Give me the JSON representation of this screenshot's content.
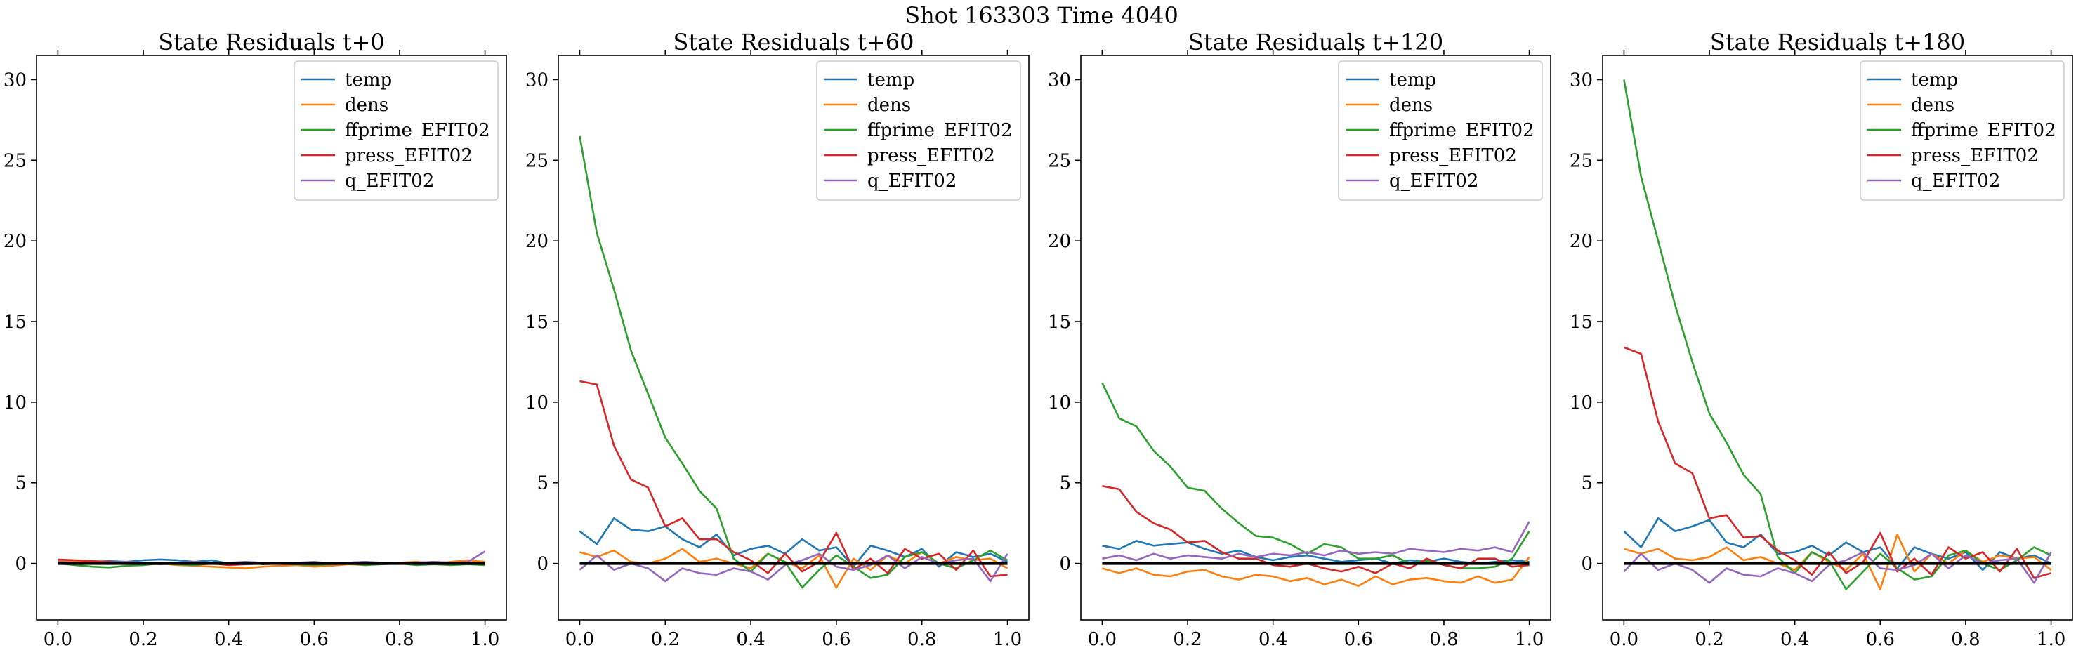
{
  "figure": {
    "suptitle": "Shot 163303   Time 4040"
  },
  "chart_data": [
    {
      "type": "line",
      "title": "State Residuals t+0",
      "xlim": [
        -0.05,
        1.05
      ],
      "ylim": [
        -3.5,
        31.5
      ],
      "xticks": [
        0.0,
        0.2,
        0.4,
        0.6,
        0.8,
        1.0
      ],
      "xtick_labels": [
        "0.0",
        "0.2",
        "0.4",
        "0.6",
        "0.8",
        "1.0"
      ],
      "yticks": [
        0,
        5,
        10,
        15,
        20,
        25,
        30
      ],
      "ytick_labels": [
        "0",
        "5",
        "10",
        "15",
        "20",
        "25",
        "30"
      ],
      "legend_position": "top-right",
      "x": [
        0.0,
        0.04,
        0.08,
        0.12,
        0.16,
        0.2,
        0.24,
        0.28,
        0.32,
        0.36,
        0.4,
        0.44,
        0.48,
        0.52,
        0.56,
        0.6,
        0.64,
        0.68,
        0.72,
        0.76,
        0.8,
        0.84,
        0.88,
        0.92,
        0.96,
        1.0
      ],
      "series": [
        {
          "name": "temp",
          "color": "#1f77b4",
          "values": [
            0.1,
            0.05,
            0.1,
            0.15,
            0.1,
            0.2,
            0.25,
            0.2,
            0.1,
            0.2,
            0.0,
            0.1,
            -0.05,
            0.0,
            0.05,
            -0.1,
            0.0,
            0.05,
            0.1,
            0.0,
            0.05,
            0.1,
            0.0,
            0.05,
            0.0,
            0.05
          ]
        },
        {
          "name": "dens",
          "color": "#ff7f0e",
          "values": [
            0.2,
            0.15,
            0.1,
            0.05,
            0.0,
            -0.05,
            0.0,
            -0.1,
            -0.15,
            -0.2,
            -0.25,
            -0.3,
            -0.2,
            -0.15,
            -0.1,
            -0.2,
            -0.15,
            -0.05,
            -0.1,
            0.0,
            0.05,
            0.1,
            0.0,
            0.1,
            0.2,
            0.1
          ]
        },
        {
          "name": "ffprime_EFIT02",
          "color": "#2ca02c",
          "values": [
            0.0,
            -0.1,
            -0.2,
            -0.25,
            -0.15,
            -0.1,
            0.0,
            -0.05,
            -0.1,
            0.0,
            -0.05,
            0.0,
            0.05,
            0.0,
            -0.05,
            -0.1,
            -0.05,
            0.0,
            -0.1,
            -0.05,
            0.0,
            -0.1,
            -0.05,
            -0.1,
            -0.05,
            -0.1
          ]
        },
        {
          "name": "press_EFIT02",
          "color": "#d62728",
          "values": [
            0.25,
            0.2,
            0.15,
            0.1,
            0.05,
            0.0,
            -0.05,
            0.0,
            0.05,
            0.0,
            -0.1,
            -0.05,
            0.0,
            0.05,
            0.0,
            -0.05,
            0.0,
            0.05,
            0.0,
            0.05,
            0.0,
            0.05,
            0.1,
            0.05,
            0.0,
            0.05
          ]
        },
        {
          "name": "q_EFIT02",
          "color": "#9467bd",
          "values": [
            0.1,
            0.05,
            0.0,
            0.05,
            0.1,
            0.05,
            0.0,
            0.05,
            0.1,
            0.0,
            0.05,
            0.1,
            0.05,
            0.0,
            0.05,
            0.1,
            0.0,
            0.05,
            0.1,
            0.05,
            0.0,
            0.05,
            0.1,
            0.05,
            0.1,
            0.75
          ]
        }
      ]
    },
    {
      "type": "line",
      "title": "State Residuals t+60",
      "xlim": [
        -0.05,
        1.05
      ],
      "ylim": [
        -3.5,
        31.5
      ],
      "xticks": [
        0.0,
        0.2,
        0.4,
        0.6,
        0.8,
        1.0
      ],
      "xtick_labels": [
        "0.0",
        "0.2",
        "0.4",
        "0.6",
        "0.8",
        "1.0"
      ],
      "yticks": [
        0,
        5,
        10,
        15,
        20,
        25,
        30
      ],
      "ytick_labels": [
        "0",
        "5",
        "10",
        "15",
        "20",
        "25",
        "30"
      ],
      "legend_position": "top-right",
      "x": [
        0.0,
        0.04,
        0.08,
        0.12,
        0.16,
        0.2,
        0.24,
        0.28,
        0.32,
        0.36,
        0.4,
        0.44,
        0.48,
        0.52,
        0.56,
        0.6,
        0.64,
        0.68,
        0.72,
        0.76,
        0.8,
        0.84,
        0.88,
        0.92,
        0.96,
        1.0
      ],
      "series": [
        {
          "name": "temp",
          "color": "#1f77b4",
          "values": [
            2.0,
            1.2,
            2.8,
            2.1,
            2.0,
            2.3,
            1.5,
            1.0,
            1.8,
            0.5,
            0.9,
            1.1,
            0.6,
            1.5,
            0.8,
            1.0,
            -0.2,
            1.1,
            0.8,
            0.4,
            0.9,
            -0.2,
            0.7,
            0.4,
            0.6,
            0.1
          ]
        },
        {
          "name": "dens",
          "color": "#ff7f0e",
          "values": [
            0.7,
            0.4,
            0.8,
            0.1,
            0.0,
            0.3,
            0.9,
            0.1,
            0.3,
            0.0,
            -0.3,
            0.6,
            0.1,
            -0.3,
            0.5,
            -1.5,
            0.3,
            -0.4,
            0.5,
            0.0,
            0.7,
            0.0,
            0.4,
            0.2,
            0.3,
            -0.3
          ]
        },
        {
          "name": "ffprime_EFIT02",
          "color": "#2ca02c",
          "values": [
            26.5,
            20.5,
            17.0,
            13.2,
            10.5,
            7.8,
            6.2,
            4.5,
            3.4,
            0.3,
            -0.5,
            0.6,
            0.1,
            -1.5,
            -0.4,
            0.5,
            -0.2,
            -0.9,
            -0.7,
            0.4,
            0.7,
            0.0,
            -0.3,
            0.2,
            0.8,
            0.2
          ]
        },
        {
          "name": "press_EFIT02",
          "color": "#d62728",
          "values": [
            11.3,
            11.1,
            7.3,
            5.2,
            4.7,
            2.3,
            2.8,
            1.5,
            1.5,
            0.7,
            0.2,
            -0.6,
            0.6,
            -0.5,
            0.1,
            1.9,
            -0.4,
            0.3,
            -0.6,
            0.9,
            0.3,
            0.6,
            -0.4,
            0.8,
            -0.8,
            -0.7
          ]
        },
        {
          "name": "q_EFIT02",
          "color": "#9467bd",
          "values": [
            -0.4,
            0.5,
            -0.4,
            0.0,
            -0.3,
            -1.1,
            -0.3,
            -0.6,
            -0.7,
            -0.3,
            -0.5,
            -1.0,
            -0.1,
            0.2,
            0.6,
            -0.2,
            -0.4,
            -0.1,
            0.5,
            -0.3,
            0.4,
            0.0,
            0.2,
            0.3,
            -1.1,
            0.6
          ]
        }
      ]
    },
    {
      "type": "line",
      "title": "State Residuals t+120",
      "xlim": [
        -0.05,
        1.05
      ],
      "ylim": [
        -3.5,
        31.5
      ],
      "xticks": [
        0.0,
        0.2,
        0.4,
        0.6,
        0.8,
        1.0
      ],
      "xtick_labels": [
        "0.0",
        "0.2",
        "0.4",
        "0.6",
        "0.8",
        "1.0"
      ],
      "yticks": [
        0,
        5,
        10,
        15,
        20,
        25,
        30
      ],
      "ytick_labels": [
        "0",
        "5",
        "10",
        "15",
        "20",
        "25",
        "30"
      ],
      "legend_position": "top-right",
      "x": [
        0.0,
        0.04,
        0.08,
        0.12,
        0.16,
        0.2,
        0.24,
        0.28,
        0.32,
        0.36,
        0.4,
        0.44,
        0.48,
        0.52,
        0.56,
        0.6,
        0.64,
        0.68,
        0.72,
        0.76,
        0.8,
        0.84,
        0.88,
        0.92,
        0.96,
        1.0
      ],
      "series": [
        {
          "name": "temp",
          "color": "#1f77b4",
          "values": [
            1.1,
            0.9,
            1.4,
            1.1,
            1.2,
            1.3,
            0.9,
            0.6,
            0.8,
            0.4,
            0.2,
            0.4,
            0.5,
            0.3,
            0.1,
            0.2,
            0.3,
            0.0,
            0.2,
            0.1,
            0.3,
            0.1,
            0.0,
            0.1,
            0.2,
            0.1
          ]
        },
        {
          "name": "dens",
          "color": "#ff7f0e",
          "values": [
            -0.3,
            -0.6,
            -0.3,
            -0.7,
            -0.8,
            -0.5,
            -0.4,
            -0.8,
            -1.0,
            -0.7,
            -0.8,
            -1.1,
            -0.9,
            -1.3,
            -1.0,
            -1.4,
            -0.8,
            -1.3,
            -1.0,
            -0.9,
            -1.1,
            -1.2,
            -0.8,
            -1.2,
            -1.0,
            0.4
          ]
        },
        {
          "name": "ffprime_EFIT02",
          "color": "#2ca02c",
          "values": [
            11.2,
            9.0,
            8.5,
            7.0,
            6.0,
            4.7,
            4.5,
            3.4,
            2.5,
            1.7,
            1.6,
            1.2,
            0.6,
            1.2,
            1.0,
            0.3,
            0.3,
            0.5,
            0.0,
            0.2,
            -0.1,
            -0.3,
            -0.3,
            -0.2,
            0.3,
            2.0
          ]
        },
        {
          "name": "press_EFIT02",
          "color": "#d62728",
          "values": [
            4.8,
            4.6,
            3.2,
            2.5,
            2.1,
            1.3,
            1.4,
            0.7,
            0.3,
            0.3,
            -0.1,
            -0.2,
            0.0,
            -0.3,
            -0.5,
            -0.2,
            -0.6,
            0.0,
            -0.3,
            0.3,
            -0.1,
            -0.3,
            0.3,
            0.3,
            -0.2,
            -0.1
          ]
        },
        {
          "name": "q_EFIT02",
          "color": "#9467bd",
          "values": [
            0.3,
            0.5,
            0.2,
            0.6,
            0.3,
            0.5,
            0.4,
            0.3,
            0.6,
            0.4,
            0.6,
            0.5,
            0.7,
            0.5,
            0.8,
            0.6,
            0.7,
            0.6,
            0.9,
            0.8,
            0.7,
            0.9,
            0.8,
            1.0,
            0.7,
            2.6
          ]
        }
      ]
    },
    {
      "type": "line",
      "title": "State Residuals t+180",
      "xlim": [
        -0.05,
        1.05
      ],
      "ylim": [
        -3.5,
        31.5
      ],
      "xticks": [
        0.0,
        0.2,
        0.4,
        0.6,
        0.8,
        1.0
      ],
      "xtick_labels": [
        "0.0",
        "0.2",
        "0.4",
        "0.6",
        "0.8",
        "1.0"
      ],
      "yticks": [
        0,
        5,
        10,
        15,
        20,
        25,
        30
      ],
      "ytick_labels": [
        "0",
        "5",
        "10",
        "15",
        "20",
        "25",
        "30"
      ],
      "legend_position": "top-right",
      "x": [
        0.0,
        0.04,
        0.08,
        0.12,
        0.16,
        0.2,
        0.24,
        0.28,
        0.32,
        0.36,
        0.4,
        0.44,
        0.48,
        0.52,
        0.56,
        0.6,
        0.64,
        0.68,
        0.72,
        0.76,
        0.8,
        0.84,
        0.88,
        0.92,
        0.96,
        1.0
      ],
      "series": [
        {
          "name": "temp",
          "color": "#1f77b4",
          "values": [
            2.0,
            1.0,
            2.8,
            2.0,
            2.3,
            2.7,
            1.3,
            1.0,
            1.8,
            0.6,
            0.7,
            1.1,
            0.5,
            1.3,
            0.7,
            1.0,
            -0.3,
            1.0,
            0.6,
            0.3,
            0.7,
            -0.4,
            0.7,
            0.3,
            0.5,
            0.0
          ]
        },
        {
          "name": "dens",
          "color": "#ff7f0e",
          "values": [
            0.9,
            0.6,
            0.9,
            0.3,
            0.2,
            0.4,
            1.0,
            0.2,
            0.4,
            0.0,
            -0.4,
            0.7,
            0.1,
            -0.4,
            0.6,
            -1.6,
            1.8,
            -0.5,
            0.6,
            0.0,
            0.8,
            0.1,
            0.5,
            0.3,
            0.4,
            -0.4
          ]
        },
        {
          "name": "ffprime_EFIT02",
          "color": "#2ca02c",
          "values": [
            30.0,
            24.0,
            20.0,
            16.0,
            12.5,
            9.3,
            7.5,
            5.5,
            4.3,
            0.4,
            -0.6,
            0.7,
            0.2,
            -1.6,
            -0.5,
            0.6,
            -0.3,
            -1.0,
            -0.8,
            0.5,
            0.8,
            0.0,
            -0.4,
            0.2,
            1.0,
            0.5
          ]
        },
        {
          "name": "press_EFIT02",
          "color": "#d62728",
          "values": [
            13.4,
            13.0,
            8.8,
            6.2,
            5.6,
            2.8,
            3.0,
            1.6,
            1.7,
            0.8,
            0.2,
            -0.7,
            0.7,
            -0.6,
            0.1,
            1.9,
            -0.5,
            0.3,
            -0.7,
            1.0,
            0.3,
            0.7,
            -0.5,
            0.9,
            -0.9,
            -0.6
          ]
        },
        {
          "name": "q_EFIT02",
          "color": "#9467bd",
          "values": [
            -0.5,
            0.6,
            -0.4,
            0.0,
            -0.4,
            -1.2,
            -0.3,
            -0.7,
            -0.8,
            -0.3,
            -0.6,
            -1.1,
            -0.1,
            0.2,
            0.7,
            -0.3,
            -0.4,
            -0.1,
            0.6,
            -0.3,
            0.5,
            0.0,
            0.2,
            0.3,
            -1.2,
            0.7
          ]
        }
      ]
    }
  ]
}
